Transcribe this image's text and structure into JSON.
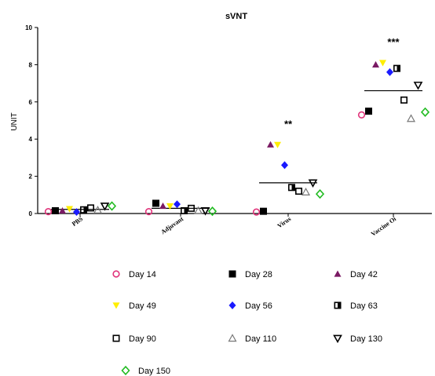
{
  "chart_data": {
    "type": "scatter",
    "title": "sVNT",
    "xlabel": "",
    "ylabel": "UNIT",
    "ylim": [
      0,
      10
    ],
    "yticks": [
      0,
      2,
      4,
      6,
      8,
      10
    ],
    "categories": [
      "PBS",
      "Adjuvant",
      "Virus",
      "Vaccine Oi"
    ],
    "significance": [
      "",
      "",
      "**",
      "***"
    ],
    "medians": [
      0.22,
      0.28,
      1.65,
      6.6
    ],
    "grid": false,
    "legend_position": "bottom",
    "series": [
      {
        "name": "Day 14",
        "marker": "circle-open",
        "color": "#e0337a",
        "values": [
          0.1,
          0.1,
          0.08,
          5.3
        ]
      },
      {
        "name": "Day 28",
        "marker": "square-filled",
        "color": "#000000",
        "values": [
          0.15,
          0.55,
          0.12,
          5.5
        ]
      },
      {
        "name": "Day 42",
        "marker": "triangle-up-filled",
        "color": "#7a1a63",
        "values": [
          0.15,
          0.4,
          3.7,
          8.0
        ]
      },
      {
        "name": "Day 49",
        "marker": "triangle-down-filled",
        "color": "#ffee00",
        "values": [
          0.25,
          0.4,
          3.7,
          8.1
        ]
      },
      {
        "name": "Day 56",
        "marker": "diamond-filled",
        "color": "#1a1aff",
        "values": [
          0.08,
          0.5,
          2.6,
          7.6
        ]
      },
      {
        "name": "Day 63",
        "marker": "square-half",
        "color": "#000000",
        "values": [
          0.2,
          0.15,
          1.4,
          7.8
        ]
      },
      {
        "name": "Day 90",
        "marker": "square-open",
        "color": "#000000",
        "values": [
          0.3,
          0.28,
          1.2,
          6.1
        ]
      },
      {
        "name": "Day 110",
        "marker": "triangle-up-open",
        "color": "#777777",
        "values": [
          0.18,
          0.15,
          1.15,
          5.1
        ]
      },
      {
        "name": "Day 130",
        "marker": "triangle-down-open",
        "color": "#000000",
        "values": [
          0.4,
          0.15,
          1.65,
          6.9
        ]
      },
      {
        "name": "Day 150",
        "marker": "diamond-open",
        "color": "#22bb22",
        "values": [
          0.4,
          0.12,
          1.05,
          5.45
        ]
      }
    ]
  }
}
